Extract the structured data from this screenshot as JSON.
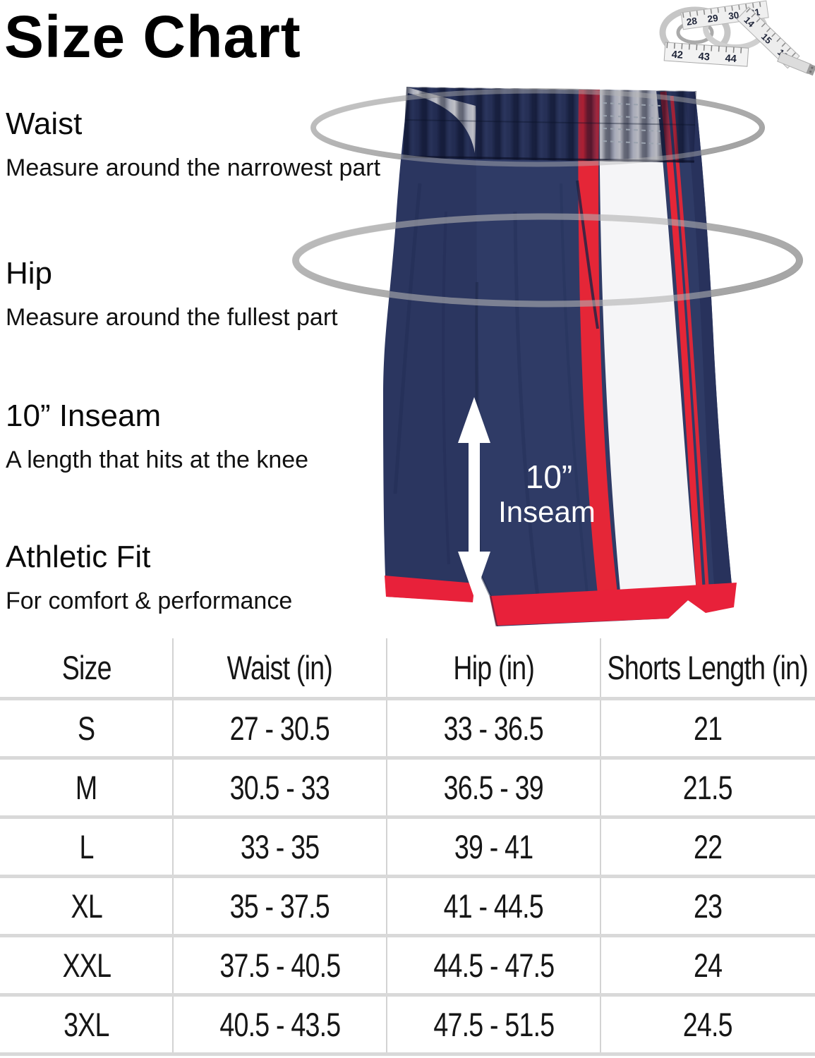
{
  "title": "Size Chart",
  "sections": [
    {
      "heading": "Waist",
      "description": "Measure around the narrowest part"
    },
    {
      "heading": "Hip",
      "description": "Measure around the fullest part"
    },
    {
      "heading": "10” Inseam",
      "description": "A length that hits at the knee"
    },
    {
      "heading": "Athletic Fit",
      "description": "For comfort & performance"
    }
  ],
  "illustration": {
    "inseam_label_line1": "10”",
    "inseam_label_line2": "Inseam",
    "tape_numbers": [
      "28",
      "29",
      "30",
      "31",
      "42",
      "43",
      "44",
      "14",
      "15",
      "16"
    ],
    "colors": {
      "navy": "#2f3b66",
      "navy_dark": "#1f2848",
      "stripe_red": "#e52637",
      "hem_red": "#e8213a",
      "white_panel": "#f5f5f7",
      "ellipse_gray": "#a8a8a8",
      "arrow_white": "#ffffff"
    }
  },
  "size_table": {
    "headers": [
      "Size",
      "Waist (in)",
      "Hip (in)",
      "Shorts Length (in)"
    ],
    "rows": [
      [
        "S",
        "27 - 30.5",
        "33 - 36.5",
        "21"
      ],
      [
        "M",
        "30.5 - 33",
        "36.5 - 39",
        "21.5"
      ],
      [
        "L",
        "33 - 35",
        "39 - 41",
        "22"
      ],
      [
        "XL",
        "35 - 37.5",
        "41 - 44.5",
        "23"
      ],
      [
        "XXL",
        "37.5 - 40.5",
        "44.5 - 47.5",
        "24"
      ],
      [
        "3XL",
        "40.5 - 43.5",
        "47.5 - 51.5",
        "24.5"
      ]
    ]
  },
  "chart_data": {
    "type": "table",
    "title": "Size Chart",
    "columns": [
      "Size",
      "Waist (in)",
      "Hip (in)",
      "Shorts Length (in)"
    ],
    "rows": [
      [
        "S",
        "27 - 30.5",
        "33 - 36.5",
        "21"
      ],
      [
        "M",
        "30.5 - 33",
        "36.5 - 39",
        "21.5"
      ],
      [
        "L",
        "33 - 35",
        "39 - 41",
        "22"
      ],
      [
        "XL",
        "35 - 37.5",
        "41 - 44.5",
        "23"
      ],
      [
        "XXL",
        "37.5 - 40.5",
        "44.5 - 47.5",
        "24"
      ],
      [
        "3XL",
        "40.5 - 43.5",
        "47.5 - 51.5",
        "24.5"
      ]
    ]
  }
}
